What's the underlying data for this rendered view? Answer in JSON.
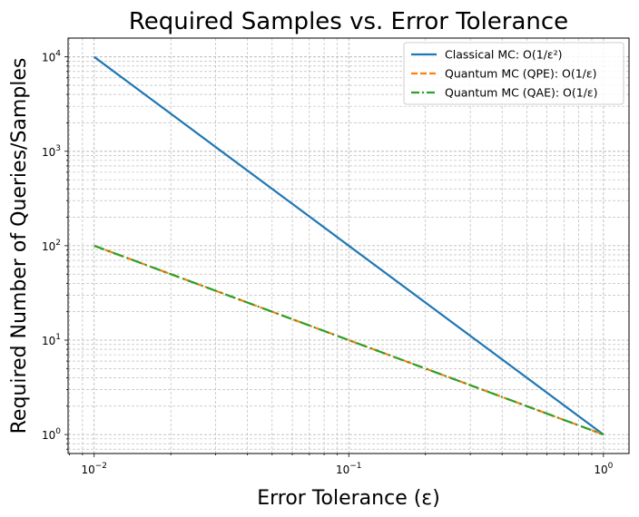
{
  "chart_data": {
    "type": "line",
    "title": "Required Samples vs. Error Tolerance",
    "xlabel": "Error Tolerance (ε)",
    "ylabel": "Required Number of Queries/Samples",
    "xscale": "log",
    "yscale": "log",
    "xlim": [
      0.0079,
      1.26
    ],
    "ylim": [
      0.63,
      15800
    ],
    "x_ticks": [
      {
        "value": 0.01,
        "base": "10",
        "exp": "−2"
      },
      {
        "value": 0.1,
        "base": "10",
        "exp": "−1"
      },
      {
        "value": 1,
        "base": "10",
        "exp": "0"
      }
    ],
    "y_ticks": [
      {
        "value": 1,
        "base": "10",
        "exp": "0"
      },
      {
        "value": 10,
        "base": "10",
        "exp": "1"
      },
      {
        "value": 100,
        "base": "10",
        "exp": "2"
      },
      {
        "value": 1000,
        "base": "10",
        "exp": "3"
      },
      {
        "value": 10000,
        "base": "10",
        "exp": "4"
      }
    ],
    "grid": true,
    "grid_minor": true,
    "legend_position": "top-right",
    "series": [
      {
        "name": "Classical MC: O(1/ε²)",
        "style": "solid",
        "color": "#1f77b4",
        "x": [
          0.01,
          1
        ],
        "y": [
          10000,
          1
        ]
      },
      {
        "name": "Quantum MC (QPE): O(1/ε)",
        "style": "dashed",
        "color": "#ff7f0e",
        "x": [
          0.01,
          1
        ],
        "y": [
          100,
          1
        ]
      },
      {
        "name": "Quantum MC (QAE): O(1/ε)",
        "style": "dashdot",
        "color": "#2ca02c",
        "x": [
          0.01,
          1
        ],
        "y": [
          100,
          1
        ]
      }
    ]
  }
}
